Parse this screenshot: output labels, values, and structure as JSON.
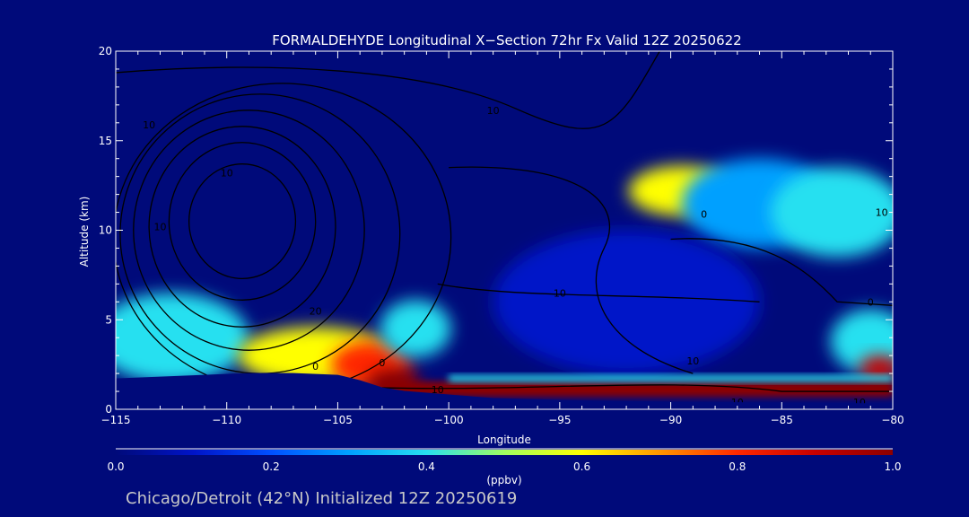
{
  "chart_data": {
    "type": "heatmap",
    "title": "FORMALDEHYDE Longitudinal X−Section 72hr  Fx Valid 12Z 20250622",
    "xlabel": "Longitude",
    "ylabel": "Altitude (km)",
    "xlim": [
      -115,
      -80
    ],
    "ylim": [
      0,
      20
    ],
    "x_ticks": [
      -115,
      -110,
      -105,
      -100,
      -95,
      -90,
      -85,
      -80
    ],
    "x_tick_labels": [
      "−115",
      "−110",
      "−105",
      "−100",
      "−95",
      "−90",
      "−85",
      "−80"
    ],
    "y_ticks": [
      0,
      5,
      10,
      15,
      20
    ],
    "y_tick_labels": [
      "0",
      "5",
      "10",
      "15",
      "20"
    ],
    "colorbar": {
      "min": 0.0,
      "max": 1.0,
      "unit": "(ppbv)",
      "ticks": [
        0.0,
        0.2,
        0.4,
        0.6,
        0.8,
        1.0
      ],
      "tick_labels": [
        "0.0",
        "0.2",
        "0.4",
        "0.6",
        "0.8",
        "1.0"
      ],
      "colormap": [
        "#000a7a",
        "#0014c8",
        "#0050ff",
        "#00a0ff",
        "#28e0f0",
        "#a0ff60",
        "#ffff00",
        "#ff9600",
        "#ff2800",
        "#c80000",
        "#8c0000"
      ]
    },
    "terrain": [
      {
        "lon": -115,
        "alt": 1.7
      },
      {
        "lon": -113,
        "alt": 1.8
      },
      {
        "lon": -111,
        "alt": 1.9
      },
      {
        "lon": -109,
        "alt": 2.0
      },
      {
        "lon": -107,
        "alt": 2.0
      },
      {
        "lon": -105,
        "alt": 1.9
      },
      {
        "lon": -104,
        "alt": 1.6
      },
      {
        "lon": -103,
        "alt": 1.2
      },
      {
        "lon": -102,
        "alt": 1.0
      },
      {
        "lon": -100,
        "alt": 0.8
      },
      {
        "lon": -98,
        "alt": 0.6
      },
      {
        "lon": -95,
        "alt": 0.5
      },
      {
        "lon": -90,
        "alt": 0.4
      },
      {
        "lon": -85,
        "alt": 0.35
      },
      {
        "lon": -80,
        "alt": 0.3
      }
    ],
    "field": [
      {
        "lon": -112.5,
        "alt": 4.0,
        "value": 0.35,
        "rx": 3.5,
        "ry": 2.5
      },
      {
        "lon": -106,
        "alt": 3.0,
        "value": 0.6,
        "rx": 3.5,
        "ry": 1.6
      },
      {
        "lon": -103.5,
        "alt": 2.5,
        "value": 0.75,
        "rx": 1.8,
        "ry": 1.3
      },
      {
        "lon": -102.5,
        "alt": 1.5,
        "value": 0.95,
        "rx": 1.2,
        "ry": 0.8
      },
      {
        "lon": -101.5,
        "alt": 4.5,
        "value": 0.4,
        "rx": 1.6,
        "ry": 1.6
      },
      {
        "lon": -89.5,
        "alt": 12.2,
        "value": 0.6,
        "rx": 2.4,
        "ry": 1.4
      },
      {
        "lon": -86,
        "alt": 11.5,
        "value": 0.3,
        "rx": 3.5,
        "ry": 2.5
      },
      {
        "lon": -82.5,
        "alt": 11.0,
        "value": 0.35,
        "rx": 3.0,
        "ry": 2.5
      },
      {
        "lon": -92,
        "alt": 6.0,
        "value": 0.1,
        "rx": 6.0,
        "ry": 4.0
      },
      {
        "lon": -81,
        "alt": 3.8,
        "value": 0.35,
        "rx": 1.8,
        "ry": 1.8
      },
      {
        "lon": -80.6,
        "alt": 2.3,
        "value": 0.9,
        "rx": 0.9,
        "ry": 0.7
      }
    ],
    "bands": [
      {
        "lon_start": -103,
        "lon_end": -80,
        "alt_bottom": 0.7,
        "alt_top": 1.55,
        "value": 1.0
      },
      {
        "lon_start": -100,
        "lon_end": -80,
        "alt_bottom": 1.55,
        "alt_top": 1.9,
        "value": 0.4
      }
    ],
    "contour_labels": [
      {
        "text": "10",
        "lon": -113.5,
        "alt": 15.7
      },
      {
        "text": "10",
        "lon": -110,
        "alt": 13.0
      },
      {
        "text": "10",
        "lon": -113,
        "alt": 10.0
      },
      {
        "text": "10",
        "lon": -98,
        "alt": 16.5
      },
      {
        "text": "20",
        "lon": -106,
        "alt": 5.3
      },
      {
        "text": "0",
        "lon": -106,
        "alt": 2.2
      },
      {
        "text": "0",
        "lon": -103,
        "alt": 2.4
      },
      {
        "text": "10",
        "lon": -100.5,
        "alt": 0.9
      },
      {
        "text": "10",
        "lon": -95,
        "alt": 6.3
      },
      {
        "text": "10",
        "lon": -89,
        "alt": 2.5
      },
      {
        "text": "0",
        "lon": -88.5,
        "alt": 10.7
      },
      {
        "text": "0",
        "lon": -81,
        "alt": 5.8
      },
      {
        "text": "10",
        "lon": -80.5,
        "alt": 10.8
      },
      {
        "text": "10",
        "lon": -87,
        "alt": 0.2
      },
      {
        "text": "10",
        "lon": -81.5,
        "alt": 0.2
      }
    ]
  },
  "footer": {
    "text": "Chicago/Detroit (42°N) Initialized 12Z 20250619"
  },
  "colors": {
    "background": "#000a7a",
    "text": "#ffffff",
    "footer_text": "#c8c8c8",
    "contour": "#000000"
  }
}
